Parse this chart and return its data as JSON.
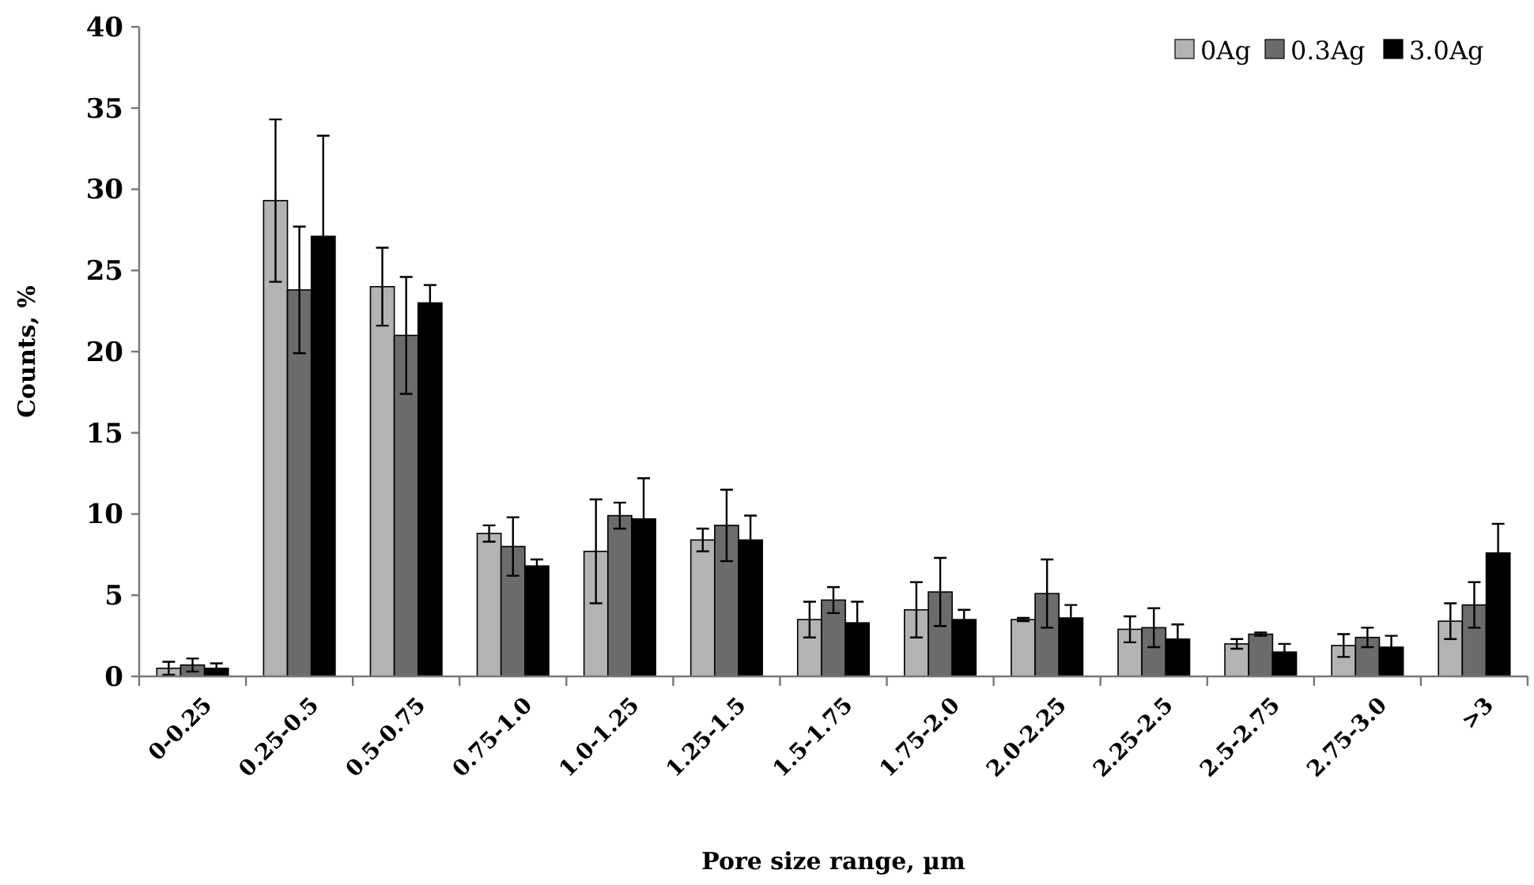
{
  "chart_data": {
    "type": "bar",
    "xlabel": "Pore size range, µm",
    "ylabel": "Counts, %",
    "categories": [
      "0-0.25",
      "0.25-0.5",
      "0.5-0.75",
      "0.75-1.0",
      "1.0-1.25",
      "1.25-1.5",
      "1.5-1.75",
      "1.75-2.0",
      "2.0-2.25",
      "2.25-2.5",
      "2.5-2.75",
      "2.75-3.0",
      ">3"
    ],
    "series": [
      {
        "name": "0Ag",
        "color": "#b3b3b3",
        "values": [
          0.5,
          29.3,
          24.0,
          8.8,
          7.7,
          8.4,
          3.5,
          4.1,
          3.5,
          2.9,
          2.0,
          1.9,
          3.4
        ],
        "errors": [
          0.4,
          5.0,
          2.4,
          0.5,
          3.2,
          0.7,
          1.1,
          1.7,
          0.1,
          0.8,
          0.3,
          0.7,
          1.1
        ]
      },
      {
        "name": "0.3Ag",
        "color": "#6b6b6b",
        "values": [
          0.7,
          23.8,
          21.0,
          8.0,
          9.9,
          9.3,
          4.7,
          5.2,
          5.1,
          3.0,
          2.6,
          2.4,
          4.4
        ],
        "errors": [
          0.4,
          3.9,
          3.6,
          1.8,
          0.8,
          2.2,
          0.8,
          2.1,
          2.1,
          1.2,
          0.1,
          0.6,
          1.4
        ]
      },
      {
        "name": "3.0Ag",
        "color": "#000000",
        "values": [
          0.5,
          27.1,
          23.0,
          6.8,
          9.7,
          8.4,
          3.3,
          3.5,
          3.6,
          2.3,
          1.5,
          1.8,
          7.6
        ],
        "errors": [
          0.3,
          6.2,
          1.1,
          0.4,
          2.5,
          1.5,
          1.3,
          0.6,
          0.8,
          0.9,
          0.5,
          0.7,
          1.8
        ]
      }
    ],
    "ylim": [
      0,
      40
    ],
    "yticks": [
      0,
      5,
      10,
      15,
      20,
      25,
      30,
      35,
      40
    ],
    "grid": false,
    "legend": "top right"
  }
}
